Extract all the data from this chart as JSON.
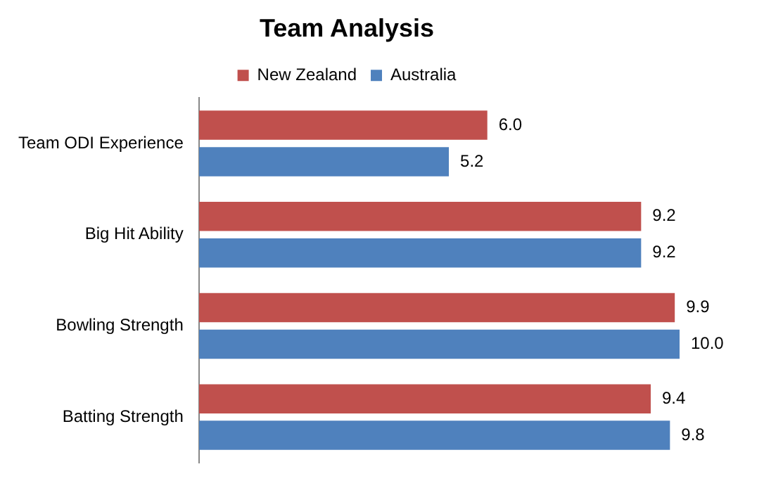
{
  "chart_data": {
    "type": "bar",
    "orientation": "horizontal",
    "relative": false,
    "title": "Team Analysis",
    "categories": [
      "Team ODI Experience",
      "Big Hit Ability",
      "Bowling Strength",
      "Batting Strength"
    ],
    "series": [
      {
        "name": "New Zealand",
        "color": "#c0504d",
        "values": [
          6.0,
          9.2,
          9.9,
          9.4
        ],
        "value_labels": [
          "6.0",
          "9.2",
          "9.9",
          "9.4"
        ]
      },
      {
        "name": "Australia",
        "color": "#4f81bd",
        "values": [
          5.2,
          9.2,
          10.0,
          9.8
        ],
        "value_labels": [
          "5.2",
          "9.2",
          "10.0",
          "9.8"
        ]
      }
    ],
    "legend": "top",
    "grid": false
  }
}
